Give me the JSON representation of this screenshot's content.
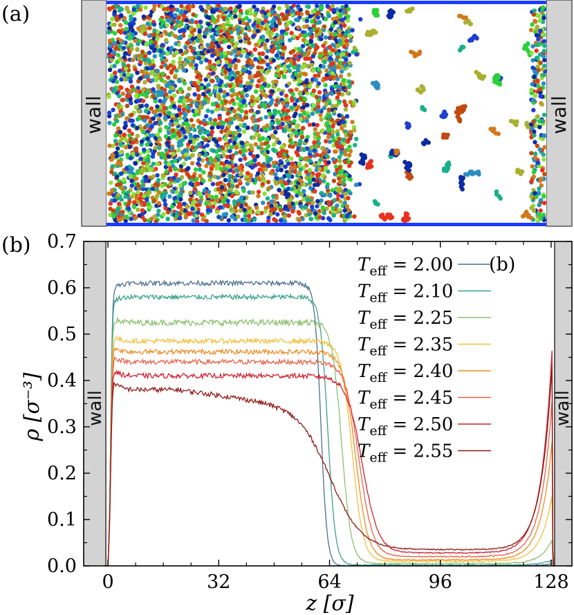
{
  "panel_a": {
    "label": "(a)",
    "wall_left": "wall",
    "wall_right": "wall",
    "colors": {
      "wall_fill": "#d3d3d3",
      "boundary": "#1a3cff",
      "particles": [
        "#e8321e",
        "#2ad13a",
        "#8ee03a",
        "#1c3fd0",
        "#2a8fc0",
        "#d07a1e",
        "#a8b030",
        "#18b08a",
        "#0d2aa0",
        "#c04a10"
      ]
    }
  },
  "panel_b": {
    "label": "(b)",
    "legend_label": "(b)",
    "wall_left": "wall",
    "wall_right": "wall"
  },
  "chart_data": {
    "type": "line",
    "xlabel": "z [σ]",
    "ylabel": "ρ [σ⁻³]",
    "xlim": [
      -7,
      134
    ],
    "ylim": [
      0,
      0.7
    ],
    "xticks": [
      0,
      32,
      64,
      96,
      128
    ],
    "yticks": [
      0.0,
      0.1,
      0.2,
      0.3,
      0.4,
      0.5,
      0.6,
      0.7
    ],
    "ytick_labels": [
      "0.0",
      "0.1",
      "0.2",
      "0.3",
      "0.4",
      "0.5",
      "0.6",
      "0.7"
    ],
    "legend_position": "top-right",
    "series": [
      {
        "name": "T_eff = 2.00",
        "legend_prefix": "T",
        "legend_sub": "eff",
        "legend_value": "= 2.00",
        "color": "#4a6e8f",
        "bulk": 0.61,
        "vapor": 0.0,
        "peak_left": 0.595,
        "interface": 61.5,
        "width": 0.9,
        "wall_peak": 0.005,
        "noise": 0.004
      },
      {
        "name": "T_eff = 2.10",
        "legend_prefix": "T",
        "legend_sub": "eff",
        "legend_value": "= 2.10",
        "color": "#3aa08a",
        "bulk": 0.58,
        "vapor": 0.002,
        "peak_left": 0.57,
        "interface": 63.5,
        "width": 1.1,
        "wall_peak": 0.01,
        "noise": 0.004
      },
      {
        "name": "T_eff = 2.25",
        "legend_prefix": "T",
        "legend_sub": "eff",
        "legend_value": "= 2.25",
        "color": "#8cc070",
        "bulk": 0.525,
        "vapor": 0.005,
        "peak_left": 0.54,
        "interface": 67.5,
        "width": 1.4,
        "wall_peak": 0.05,
        "noise": 0.005
      },
      {
        "name": "T_eff = 2.35",
        "legend_prefix": "T",
        "legend_sub": "eff",
        "legend_value": "= 2.35",
        "color": "#f0c040",
        "bulk": 0.485,
        "vapor": 0.01,
        "peak_left": 0.5,
        "interface": 70.5,
        "width": 1.6,
        "wall_peak": 0.14,
        "noise": 0.004
      },
      {
        "name": "T_eff = 2.40",
        "legend_prefix": "T",
        "legend_sub": "eff",
        "legend_value": "= 2.40",
        "color": "#f08a20",
        "bulk": 0.462,
        "vapor": 0.013,
        "peak_left": 0.48,
        "interface": 71.5,
        "width": 1.8,
        "wall_peak": 0.25,
        "noise": 0.004
      },
      {
        "name": "T_eff = 2.45",
        "legend_prefix": "T",
        "legend_sub": "eff",
        "legend_value": "= 2.45",
        "color": "#e86048",
        "bulk": 0.44,
        "vapor": 0.02,
        "peak_left": 0.46,
        "interface": 72.5,
        "width": 2.0,
        "wall_peak": 0.33,
        "noise": 0.004
      },
      {
        "name": "T_eff = 2.50",
        "legend_prefix": "T",
        "legend_sub": "eff",
        "legend_value": "= 2.50",
        "color": "#d02030",
        "bulk": 0.41,
        "vapor": 0.028,
        "peak_left": 0.43,
        "interface": 73.5,
        "width": 2.3,
        "wall_peak": 0.43,
        "noise": 0.004
      },
      {
        "name": "T_eff = 2.55",
        "legend_prefix": "T",
        "legend_sub": "eff",
        "legend_value": "= 2.55",
        "color": "#8c1a14",
        "bulk": 0.38,
        "vapor": 0.035,
        "peak_left": 0.41,
        "interface": 64.5,
        "width": 4.5,
        "wall_peak": 0.39,
        "noise": 0.004
      }
    ]
  }
}
